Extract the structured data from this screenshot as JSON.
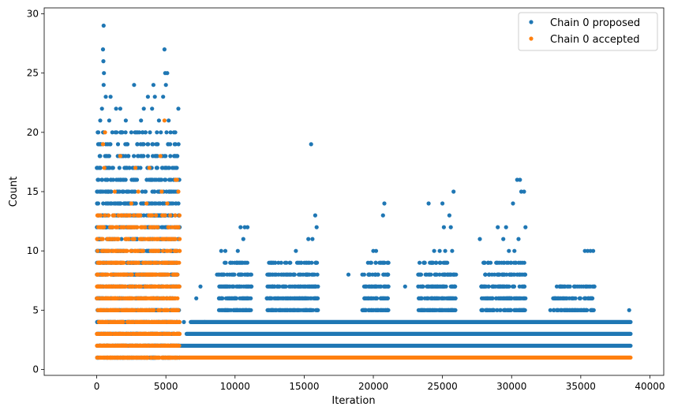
{
  "chart_data": {
    "type": "scatter",
    "title": "",
    "xlabel": "Iteration",
    "ylabel": "Count",
    "xlim": [
      -3800,
      41000
    ],
    "ylim": [
      -0.5,
      30.5
    ],
    "xticks": [
      0,
      5000,
      10000,
      15000,
      20000,
      25000,
      30000,
      35000,
      40000
    ],
    "yticks": [
      0,
      5,
      10,
      15,
      20,
      25,
      30
    ],
    "grid": false,
    "legend_position": "top-right",
    "series": [
      {
        "name": "Chain 0 proposed",
        "color": "#1f77b4",
        "bands": [
          {
            "y": 2,
            "x_start": 6000,
            "x_end": 38600
          },
          {
            "y": 3,
            "x_start": 6500,
            "x_end": 38600
          },
          {
            "y": 4,
            "x_start": 6800,
            "x_end": 38600
          }
        ],
        "points": [
          [
            500,
            29
          ],
          [
            450,
            27
          ],
          [
            480,
            26
          ],
          [
            4900,
            27
          ],
          [
            520,
            25
          ],
          [
            4950,
            25
          ],
          [
            5100,
            25
          ],
          [
            500,
            24
          ],
          [
            2700,
            24
          ],
          [
            4100,
            24
          ],
          [
            5000,
            24
          ],
          [
            650,
            23
          ],
          [
            1000,
            23
          ],
          [
            3700,
            23
          ],
          [
            4200,
            23
          ],
          [
            4800,
            23
          ],
          [
            380,
            22
          ],
          [
            1400,
            22
          ],
          [
            1700,
            22
          ],
          [
            3400,
            22
          ],
          [
            4000,
            22
          ],
          [
            5900,
            22
          ],
          [
            250,
            21
          ],
          [
            900,
            21
          ],
          [
            2100,
            21
          ],
          [
            3200,
            21
          ],
          [
            4500,
            21
          ],
          [
            5200,
            21
          ],
          [
            15500,
            19
          ],
          [
            20800,
            14
          ],
          [
            24000,
            14
          ],
          [
            25800,
            15
          ],
          [
            30400,
            16
          ],
          [
            30600,
            16
          ],
          [
            30700,
            15
          ],
          [
            30900,
            15
          ],
          [
            15800,
            13
          ],
          [
            20700,
            13
          ],
          [
            25000,
            14
          ],
          [
            25500,
            13
          ],
          [
            35900,
            10
          ],
          [
            35300,
            10
          ],
          [
            35500,
            10
          ],
          [
            10400,
            12
          ],
          [
            10700,
            12
          ],
          [
            10900,
            12
          ],
          [
            15900,
            12
          ],
          [
            15300,
            11
          ],
          [
            15600,
            11
          ],
          [
            25100,
            12
          ],
          [
            25600,
            12
          ],
          [
            29000,
            12
          ],
          [
            29600,
            12
          ],
          [
            30100,
            14
          ],
          [
            31000,
            12
          ],
          [
            10600,
            11
          ],
          [
            27700,
            11
          ],
          [
            29400,
            11
          ],
          [
            30500,
            11
          ],
          [
            9000,
            10
          ],
          [
            9300,
            10
          ],
          [
            10200,
            10
          ],
          [
            14400,
            10
          ],
          [
            20000,
            10
          ],
          [
            20200,
            10
          ],
          [
            24400,
            10
          ],
          [
            24800,
            10
          ],
          [
            25200,
            10
          ],
          [
            25700,
            10
          ],
          [
            29800,
            10
          ],
          [
            30200,
            10
          ],
          [
            35700,
            10
          ],
          [
            7500,
            7
          ],
          [
            7200,
            6
          ],
          [
            18200,
            8
          ],
          [
            12700,
            7
          ],
          [
            8700,
            8
          ],
          [
            22300,
            7
          ],
          [
            19300,
            5
          ],
          [
            32800,
            5
          ],
          [
            33300,
            5
          ],
          [
            38500,
            5
          ],
          [
            7800,
            4
          ],
          [
            6300,
            4
          ]
        ],
        "clusters": [
          {
            "x_start": 0,
            "x_end": 6000,
            "y_min": 1,
            "y_max": 20
          },
          {
            "x_start": 8800,
            "x_end": 11200,
            "y_min": 5,
            "y_max": 9
          },
          {
            "x_start": 12300,
            "x_end": 16000,
            "y_min": 5,
            "y_max": 9
          },
          {
            "x_start": 19200,
            "x_end": 21100,
            "y_min": 5,
            "y_max": 9
          },
          {
            "x_start": 23200,
            "x_end": 26000,
            "y_min": 5,
            "y_max": 9
          },
          {
            "x_start": 27800,
            "x_end": 31000,
            "y_min": 5,
            "y_max": 9
          },
          {
            "x_start": 33000,
            "x_end": 36000,
            "y_min": 5,
            "y_max": 7
          }
        ]
      },
      {
        "name": "Chain 0 accepted",
        "color": "#ff7f0e",
        "bands": [
          {
            "y": 1,
            "x_start": 6000,
            "x_end": 38600
          }
        ],
        "points": [
          [
            600,
            20
          ],
          [
            4900,
            21
          ],
          [
            450,
            19
          ],
          [
            1700,
            18
          ],
          [
            4600,
            18
          ],
          [
            550,
            17
          ],
          [
            2800,
            17
          ],
          [
            3800,
            17
          ],
          [
            5800,
            16
          ],
          [
            5700,
            16
          ],
          [
            3000,
            15
          ],
          [
            4700,
            15
          ],
          [
            1300,
            15
          ],
          [
            2500,
            14
          ],
          [
            3600,
            14
          ],
          [
            5100,
            14
          ],
          [
            5900,
            15
          ]
        ],
        "clusters": [
          {
            "x_start": 0,
            "x_end": 6000,
            "y_min": 1,
            "y_max": 13
          }
        ]
      }
    ]
  }
}
